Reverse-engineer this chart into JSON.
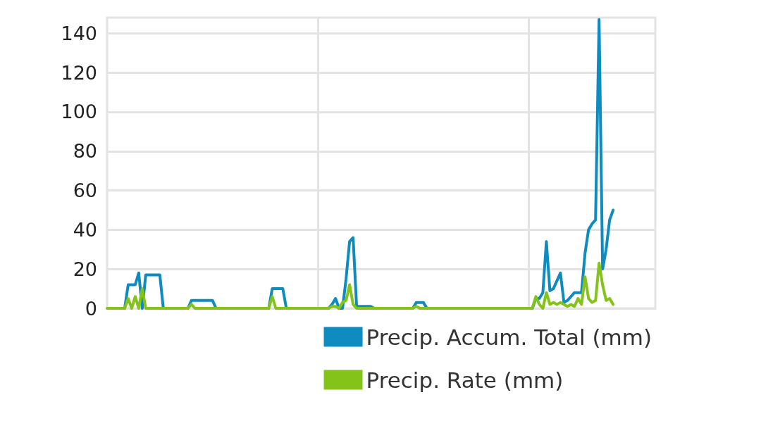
{
  "chart_data": {
    "type": "line",
    "categories": [
      null,
      null,
      null,
      null,
      null,
      null,
      null,
      null,
      null,
      null,
      null,
      null,
      null,
      null,
      null,
      null,
      null,
      null,
      null,
      null,
      null,
      null,
      null,
      null,
      null,
      null,
      null,
      null,
      null,
      null,
      null,
      null,
      null,
      null,
      null,
      null,
      null,
      null,
      null,
      null,
      null,
      null,
      null,
      null,
      null,
      null,
      null,
      null,
      null,
      null,
      null,
      null,
      null,
      null,
      null,
      null,
      null,
      null,
      null,
      null,
      null,
      null,
      null,
      null,
      null,
      null,
      null,
      null,
      null,
      null,
      null,
      null,
      null,
      null,
      null,
      null,
      null,
      null,
      null,
      null,
      null,
      null,
      null,
      null,
      null,
      null,
      null,
      null,
      null,
      null,
      null,
      null,
      null,
      null,
      null,
      null,
      null,
      null,
      null,
      null,
      null,
      null,
      null,
      null,
      null,
      null,
      null,
      null,
      null,
      null,
      null,
      null,
      null,
      null,
      null,
      null,
      null,
      null,
      null,
      null,
      null,
      null,
      null,
      null,
      null,
      null,
      null,
      null,
      null,
      null,
      null,
      null,
      null,
      null,
      null,
      null,
      null,
      null,
      null,
      null,
      null,
      null,
      null,
      null,
      null,
      null,
      null,
      null,
      null,
      null,
      null,
      null,
      null,
      null,
      null,
      null,
      null
    ],
    "series": [
      {
        "name": "Precip. Accum. Total (mm)",
        "color": "#0e8bbf",
        "values": [
          null,
          null,
          null,
          null,
          null,
          0,
          12,
          12,
          12,
          18,
          0,
          17,
          17,
          17,
          17,
          17,
          0,
          null,
          null,
          null,
          null,
          null,
          null,
          0,
          4,
          4,
          4,
          4,
          4,
          4,
          4,
          0,
          null,
          null,
          null,
          null,
          null,
          null,
          null,
          null,
          null,
          null,
          null,
          null,
          null,
          null,
          0,
          10,
          10,
          10,
          10,
          0,
          null,
          null,
          null,
          null,
          null,
          null,
          null,
          null,
          null,
          null,
          null,
          0,
          2,
          5,
          0,
          0,
          15,
          34,
          36,
          1,
          1,
          1,
          1,
          1,
          0,
          null,
          null,
          null,
          null,
          null,
          null,
          null,
          null,
          null,
          null,
          0,
          3,
          3,
          3,
          0,
          null,
          null,
          null,
          null,
          null,
          null,
          null,
          null,
          null,
          null,
          null,
          null,
          null,
          null,
          null,
          null,
          null,
          null,
          null,
          null,
          null,
          null,
          null,
          null,
          null,
          null,
          null,
          null,
          null,
          0,
          5,
          5,
          8,
          34,
          9,
          10,
          14,
          18,
          3,
          4,
          6,
          8,
          8,
          8,
          28,
          40,
          43,
          45,
          147,
          20,
          30,
          45,
          50,
          null,
          null,
          null,
          null,
          null,
          null,
          null,
          null,
          null,
          null,
          null,
          null
        ]
      },
      {
        "name": "Precip. Rate (mm)",
        "color": "#84c31a",
        "values": [
          0,
          0,
          0,
          0,
          0,
          0,
          5,
          0,
          6,
          0,
          10,
          0,
          0,
          0,
          0,
          0,
          0,
          0,
          0,
          0,
          0,
          0,
          0,
          0,
          2,
          0,
          0,
          0,
          0,
          0,
          0,
          0,
          0,
          0,
          0,
          0,
          0,
          0,
          0,
          0,
          0,
          0,
          0,
          0,
          0,
          0,
          0,
          6,
          0,
          0,
          0,
          0,
          0,
          0,
          0,
          0,
          0,
          0,
          0,
          0,
          0,
          0,
          0,
          0,
          1,
          1,
          0,
          3,
          4,
          12,
          2,
          0,
          0,
          0,
          0,
          0,
          0,
          0,
          0,
          0,
          0,
          0,
          0,
          0,
          0,
          0,
          0,
          0,
          1,
          0,
          0,
          0,
          0,
          0,
          0,
          0,
          0,
          0,
          0,
          0,
          0,
          0,
          0,
          0,
          0,
          0,
          0,
          0,
          0,
          0,
          0,
          0,
          0,
          0,
          0,
          0,
          0,
          0,
          0,
          0,
          0,
          0,
          6,
          2,
          0,
          8,
          2,
          3,
          2,
          3,
          2,
          1,
          2,
          1,
          5,
          2,
          16,
          5,
          3,
          4,
          23,
          12,
          4,
          5,
          2,
          null,
          null,
          null,
          null,
          null,
          null,
          null,
          null,
          null,
          null,
          null,
          null
        ]
      }
    ],
    "ylim": [
      0,
      148
    ],
    "yticks": [
      0,
      20,
      40,
      60,
      80,
      100,
      120,
      140
    ],
    "grid": true,
    "legend": "bottom right",
    "marker": "none",
    "line_style": "solid"
  }
}
